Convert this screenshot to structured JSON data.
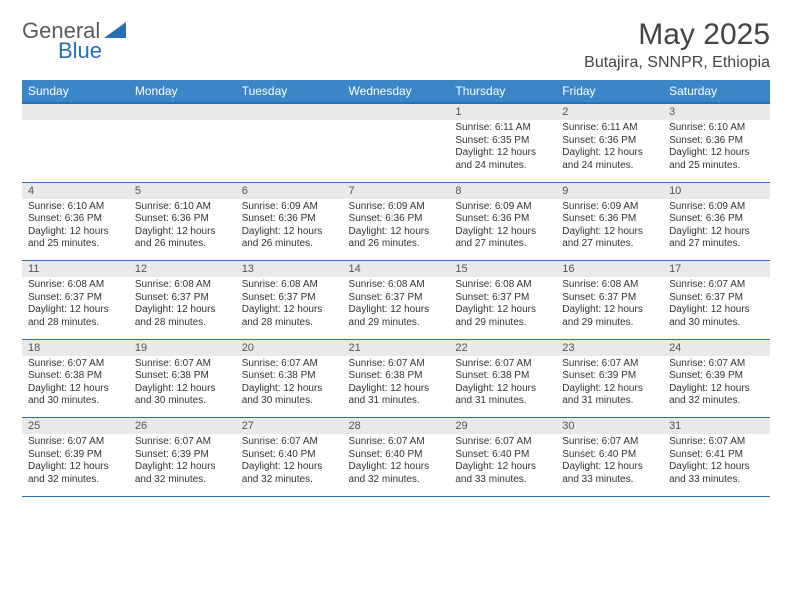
{
  "brand": {
    "word1": "General",
    "word2": "Blue",
    "triangle_color": "#2a6fb5"
  },
  "title": "May 2025",
  "location": "Butajira, SNNPR, Ethiopia",
  "colors": {
    "header_bg": "#3b86c8",
    "header_border": "#2a6fb5",
    "daynum_bg": "#e9e9e9",
    "text": "#333333",
    "logo_gray": "#5a5a5a",
    "logo_blue": "#2a6fb5"
  },
  "weekdays": [
    "Sunday",
    "Monday",
    "Tuesday",
    "Wednesday",
    "Thursday",
    "Friday",
    "Saturday"
  ],
  "weeks": [
    [
      null,
      null,
      null,
      null,
      {
        "n": "1",
        "sr": "6:11 AM",
        "ss": "6:35 PM",
        "dl": "12 hours and 24 minutes."
      },
      {
        "n": "2",
        "sr": "6:11 AM",
        "ss": "6:36 PM",
        "dl": "12 hours and 24 minutes."
      },
      {
        "n": "3",
        "sr": "6:10 AM",
        "ss": "6:36 PM",
        "dl": "12 hours and 25 minutes."
      }
    ],
    [
      {
        "n": "4",
        "sr": "6:10 AM",
        "ss": "6:36 PM",
        "dl": "12 hours and 25 minutes."
      },
      {
        "n": "5",
        "sr": "6:10 AM",
        "ss": "6:36 PM",
        "dl": "12 hours and 26 minutes."
      },
      {
        "n": "6",
        "sr": "6:09 AM",
        "ss": "6:36 PM",
        "dl": "12 hours and 26 minutes."
      },
      {
        "n": "7",
        "sr": "6:09 AM",
        "ss": "6:36 PM",
        "dl": "12 hours and 26 minutes."
      },
      {
        "n": "8",
        "sr": "6:09 AM",
        "ss": "6:36 PM",
        "dl": "12 hours and 27 minutes."
      },
      {
        "n": "9",
        "sr": "6:09 AM",
        "ss": "6:36 PM",
        "dl": "12 hours and 27 minutes."
      },
      {
        "n": "10",
        "sr": "6:09 AM",
        "ss": "6:36 PM",
        "dl": "12 hours and 27 minutes."
      }
    ],
    [
      {
        "n": "11",
        "sr": "6:08 AM",
        "ss": "6:37 PM",
        "dl": "12 hours and 28 minutes."
      },
      {
        "n": "12",
        "sr": "6:08 AM",
        "ss": "6:37 PM",
        "dl": "12 hours and 28 minutes."
      },
      {
        "n": "13",
        "sr": "6:08 AM",
        "ss": "6:37 PM",
        "dl": "12 hours and 28 minutes."
      },
      {
        "n": "14",
        "sr": "6:08 AM",
        "ss": "6:37 PM",
        "dl": "12 hours and 29 minutes."
      },
      {
        "n": "15",
        "sr": "6:08 AM",
        "ss": "6:37 PM",
        "dl": "12 hours and 29 minutes."
      },
      {
        "n": "16",
        "sr": "6:08 AM",
        "ss": "6:37 PM",
        "dl": "12 hours and 29 minutes."
      },
      {
        "n": "17",
        "sr": "6:07 AM",
        "ss": "6:37 PM",
        "dl": "12 hours and 30 minutes."
      }
    ],
    [
      {
        "n": "18",
        "sr": "6:07 AM",
        "ss": "6:38 PM",
        "dl": "12 hours and 30 minutes."
      },
      {
        "n": "19",
        "sr": "6:07 AM",
        "ss": "6:38 PM",
        "dl": "12 hours and 30 minutes."
      },
      {
        "n": "20",
        "sr": "6:07 AM",
        "ss": "6:38 PM",
        "dl": "12 hours and 30 minutes."
      },
      {
        "n": "21",
        "sr": "6:07 AM",
        "ss": "6:38 PM",
        "dl": "12 hours and 31 minutes."
      },
      {
        "n": "22",
        "sr": "6:07 AM",
        "ss": "6:38 PM",
        "dl": "12 hours and 31 minutes."
      },
      {
        "n": "23",
        "sr": "6:07 AM",
        "ss": "6:39 PM",
        "dl": "12 hours and 31 minutes."
      },
      {
        "n": "24",
        "sr": "6:07 AM",
        "ss": "6:39 PM",
        "dl": "12 hours and 32 minutes."
      }
    ],
    [
      {
        "n": "25",
        "sr": "6:07 AM",
        "ss": "6:39 PM",
        "dl": "12 hours and 32 minutes."
      },
      {
        "n": "26",
        "sr": "6:07 AM",
        "ss": "6:39 PM",
        "dl": "12 hours and 32 minutes."
      },
      {
        "n": "27",
        "sr": "6:07 AM",
        "ss": "6:40 PM",
        "dl": "12 hours and 32 minutes."
      },
      {
        "n": "28",
        "sr": "6:07 AM",
        "ss": "6:40 PM",
        "dl": "12 hours and 32 minutes."
      },
      {
        "n": "29",
        "sr": "6:07 AM",
        "ss": "6:40 PM",
        "dl": "12 hours and 33 minutes."
      },
      {
        "n": "30",
        "sr": "6:07 AM",
        "ss": "6:40 PM",
        "dl": "12 hours and 33 minutes."
      },
      {
        "n": "31",
        "sr": "6:07 AM",
        "ss": "6:41 PM",
        "dl": "12 hours and 33 minutes."
      }
    ]
  ],
  "labels": {
    "sunrise": "Sunrise:",
    "sunset": "Sunset:",
    "daylight": "Daylight:"
  }
}
